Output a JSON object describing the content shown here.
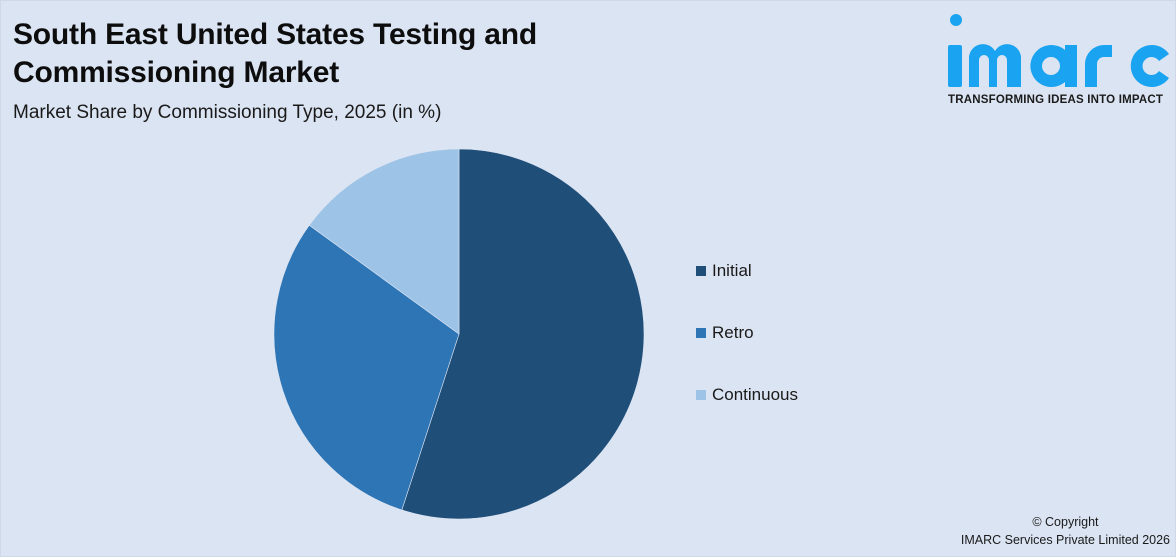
{
  "header": {
    "title_line1": "South East United States Testing and",
    "title_line2": "Commissioning Market",
    "subtitle": "Market Share by Commissioning Type, 2025 (in %)"
  },
  "logo": {
    "wordmark": "imarc",
    "tagline": "TRANSFORMING IDEAS INTO IMPACT",
    "color": "#1aa3f0"
  },
  "footer": {
    "copyright": "© Copyright",
    "company": "IMARC Services Private Limited 2026"
  },
  "chart_data": {
    "type": "pie",
    "title": "South East United States Testing and Commissioning Market",
    "subtitle": "Market Share by Commissioning Type, 2025 (in %)",
    "categories": [
      "Initial",
      "Retro",
      "Continuous"
    ],
    "values": [
      55,
      30,
      15
    ],
    "colors": [
      "#1f4e79",
      "#2e75b6",
      "#9dc3e6"
    ],
    "start_angle_deg": 0,
    "direction": "clockwise",
    "legend_position": "right",
    "data_labels": false
  }
}
